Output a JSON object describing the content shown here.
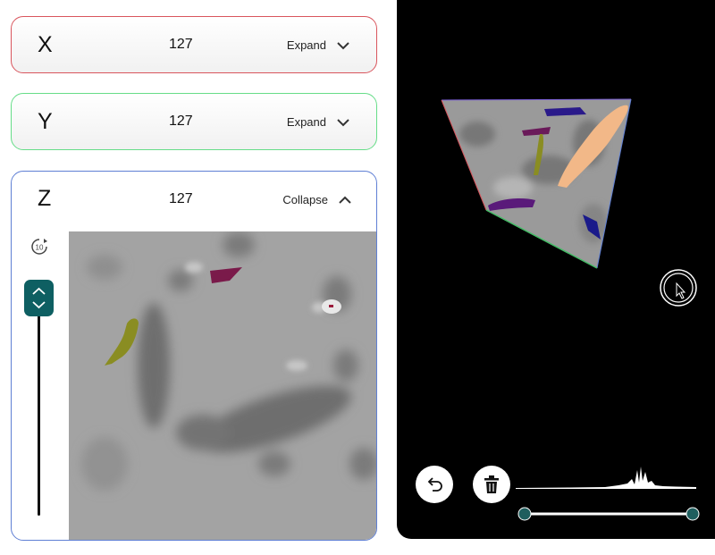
{
  "panels": {
    "x": {
      "axis": "X",
      "value": "127",
      "toggle": "Expand",
      "color": "#d9555d"
    },
    "y": {
      "axis": "Y",
      "value": "127",
      "toggle": "Expand",
      "color": "#66dd88"
    },
    "z": {
      "axis": "Z",
      "value": "127",
      "toggle": "Collapse",
      "color": "#5f7fd4"
    }
  },
  "z_tools": {
    "rotate_label": "10"
  },
  "viewer": {
    "range_min": 0,
    "range_max": 1
  }
}
